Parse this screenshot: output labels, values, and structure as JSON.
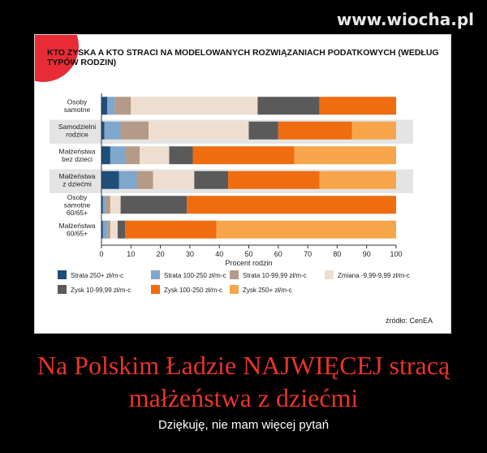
{
  "watermark": "www.wiocha.pl",
  "caption": {
    "line1": "Na Polskim Ładzie NAJWIĘCEJ stracą",
    "line2": "małżeństwa z dziećmi",
    "subtitle": "Dziękuję, nie mam więcej pytań"
  },
  "source": "źródło: CenEA",
  "chart_data": {
    "type": "bar",
    "orientation": "horizontal",
    "stacked": true,
    "title": "KTO ZYSKA A KTO STRACI NA MODELOWANYCH ROZWIĄZANIACH PODATKOWYCH (WEDŁUG TYPÓW RODZIN)",
    "xlabel": "Procent rodzin",
    "xlim": [
      0,
      100
    ],
    "xticks": [
      0,
      10,
      20,
      30,
      40,
      50,
      60,
      70,
      80,
      90,
      100
    ],
    "legend_position": "bottom",
    "categories": [
      [
        "Osoby",
        "samotne"
      ],
      [
        "Samodzielni",
        "rodzice"
      ],
      [
        "Małżeństwa",
        "bez dzieci"
      ],
      [
        "Małżeństwa",
        "z dziećmi"
      ],
      [
        "Osoby",
        "samotne",
        "60/65+"
      ],
      [
        "Małżeństwa",
        "60/65+"
      ]
    ],
    "highlighted_rows": [
      1,
      3
    ],
    "series": [
      {
        "name": "Strata 250+ zł/m-c",
        "color": "#1f4e79",
        "values": [
          2,
          1,
          3,
          6,
          0.5,
          0.5
        ]
      },
      {
        "name": "Strata 100-250 zł/m-c",
        "color": "#7fa7cc",
        "values": [
          2.5,
          5.5,
          5,
          6,
          1,
          1.5
        ]
      },
      {
        "name": "Strata 10-99,99 zł/m-c",
        "color": "#b49a87",
        "values": [
          5.5,
          9.5,
          5,
          5.5,
          1.5,
          1
        ]
      },
      {
        "name": "Zmiana -9,99-9,99 zł/m-c",
        "color": "#eeded0",
        "values": [
          43,
          34,
          10,
          14,
          3.5,
          2.5
        ]
      },
      {
        "name": "Zysk 10-99,99 zł/m-c",
        "color": "#5a5a5a",
        "values": [
          21,
          10,
          8,
          11.5,
          22.5,
          2.5
        ]
      },
      {
        "name": "Zysk 100-250 zł/m-c",
        "color": "#ef6c0f",
        "values": [
          26,
          25,
          34.5,
          31,
          71,
          31
        ]
      },
      {
        "name": "Zysk 250+ zł/m-c",
        "color": "#f7a54a",
        "values": [
          0,
          15,
          34.5,
          26,
          0,
          61
        ]
      }
    ]
  }
}
